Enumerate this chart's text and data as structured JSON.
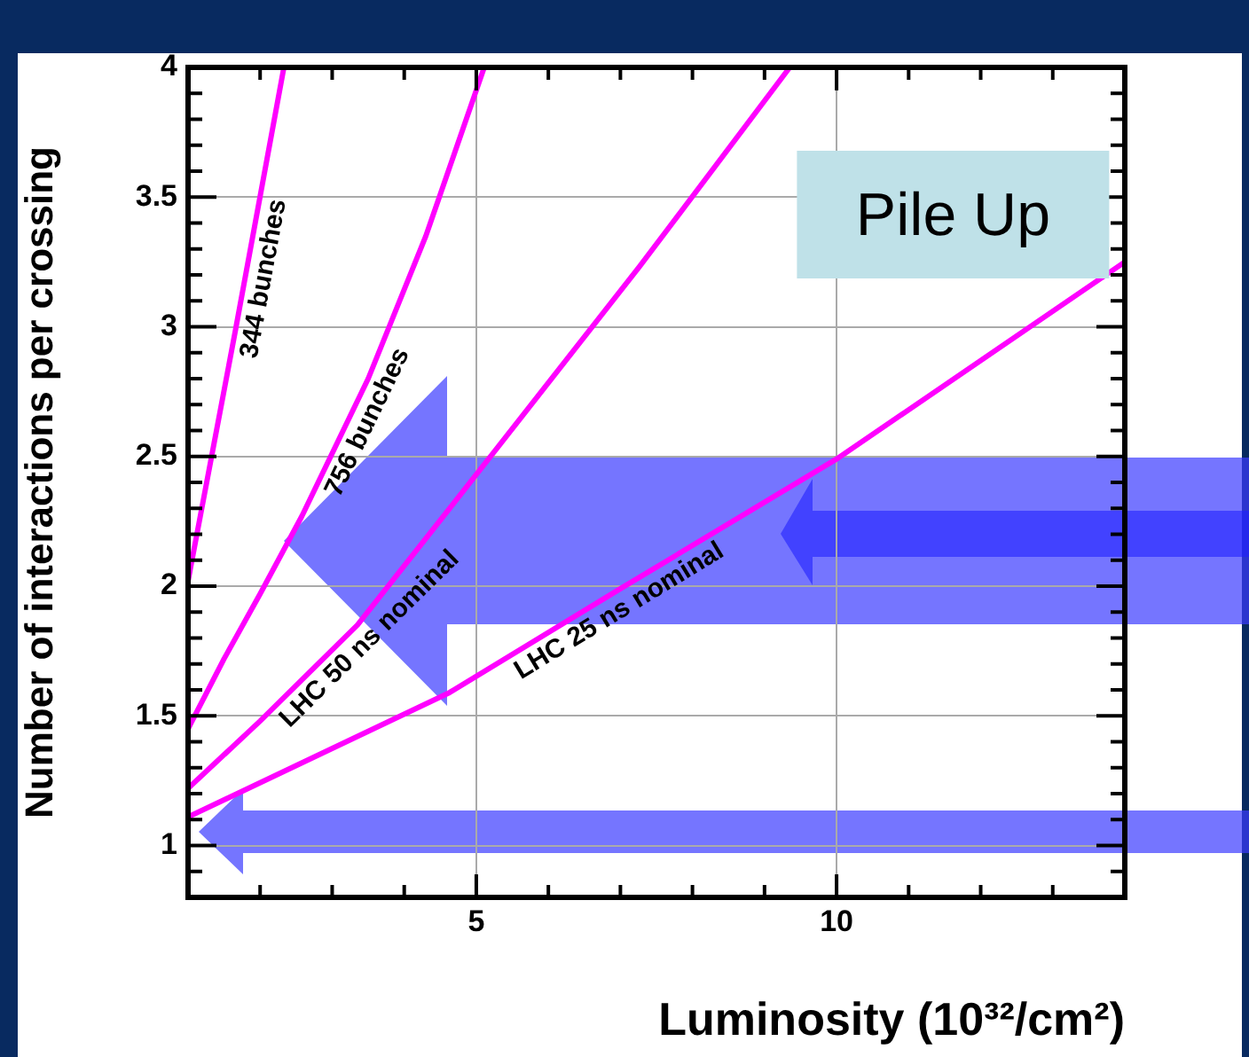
{
  "chart_data": {
    "type": "line",
    "xlabel": "Luminosity (10³²/cm²)",
    "ylabel": "Number of interactions per crossing",
    "annotations": [
      "Pile Up"
    ],
    "xlim": [
      1,
      14
    ],
    "ylim": [
      0.8,
      4
    ],
    "xticks": [
      {
        "value": 1,
        "label": null
      },
      {
        "value": 2,
        "label": null
      },
      {
        "value": 3,
        "label": null
      },
      {
        "value": 4,
        "label": null
      },
      5,
      {
        "value": 6,
        "label": null
      },
      {
        "value": 7,
        "label": null
      },
      {
        "value": 8,
        "label": null
      },
      {
        "value": 9,
        "label": null
      },
      10,
      {
        "value": 11,
        "label": null
      },
      {
        "value": 12,
        "label": null
      },
      {
        "value": 13,
        "label": null
      },
      {
        "value": 14,
        "label": null
      }
    ],
    "yticks": [
      {
        "value": 0.8,
        "label": null
      },
      {
        "value": 0.9,
        "label": null
      },
      1,
      {
        "value": 1.1,
        "label": null
      },
      {
        "value": 1.2,
        "label": null
      },
      {
        "value": 1.3,
        "label": null
      },
      {
        "value": 1.4,
        "label": null
      },
      1.5,
      {
        "value": 1.6,
        "label": null
      },
      {
        "value": 1.7,
        "label": null
      },
      {
        "value": 1.8,
        "label": null
      },
      {
        "value": 1.9,
        "label": null
      },
      2,
      {
        "value": 2.1,
        "label": null
      },
      {
        "value": 2.2,
        "label": null
      },
      {
        "value": 2.3,
        "label": null
      },
      {
        "value": 2.4,
        "label": null
      },
      2.5,
      {
        "value": 2.6,
        "label": null
      },
      {
        "value": 2.7,
        "label": null
      },
      {
        "value": 2.8,
        "label": null
      },
      {
        "value": 2.9,
        "label": null
      },
      3,
      {
        "value": 3.1,
        "label": null
      },
      {
        "value": 3.2,
        "label": null
      },
      {
        "value": 3.3,
        "label": null
      },
      {
        "value": 3.4,
        "label": null
      },
      3.5,
      {
        "value": 3.6,
        "label": null
      },
      {
        "value": 3.7,
        "label": null
      },
      {
        "value": 3.8,
        "label": null
      },
      {
        "value": 3.9,
        "label": null
      },
      4
    ],
    "grid": true,
    "legend": false,
    "marker": "none",
    "line_style": "solid",
    "series": [
      {
        "name": "344 bunches",
        "color": "#ff00ff",
        "x": [
          1,
          1.17,
          1.66,
          2.33
        ],
        "values": [
          2.02,
          2.27,
          2.99,
          4
        ]
      },
      {
        "name": "756 bunches",
        "color": "#ff00ff",
        "x": [
          1,
          1.5,
          2,
          2.58,
          3.5,
          4.3,
          5.11
        ],
        "values": [
          1.45,
          1.72,
          1.97,
          2.27,
          2.8,
          3.35,
          4
        ]
      },
      {
        "name": "LHC 50 ns nominal",
        "color": "#ff00ff",
        "x": [
          1,
          2,
          3.35,
          5,
          7.26,
          9.35
        ],
        "values": [
          1.22,
          1.48,
          1.85,
          2.43,
          3.23,
          4
        ]
      },
      {
        "name": "LHC 25 ns nominal",
        "color": "#ff00ff",
        "x": [
          1,
          4.63,
          7,
          10,
          14
        ],
        "values": [
          1.11,
          1.59,
          1.99,
          2.49,
          3.25
        ]
      }
    ]
  }
}
